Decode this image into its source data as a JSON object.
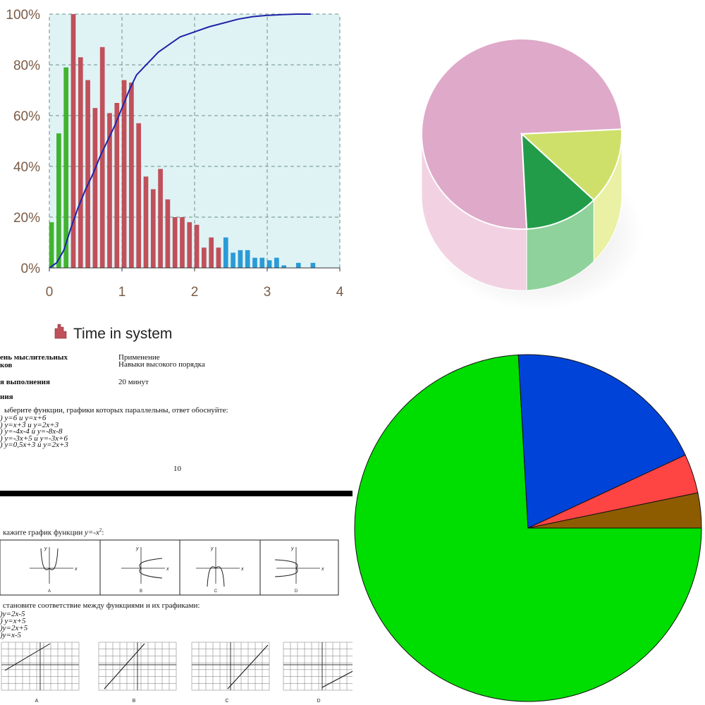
{
  "chart_data": [
    {
      "type": "bar",
      "x_tick_labels": [
        "0",
        "1",
        "2",
        "3",
        "4"
      ],
      "y_tick_labels": [
        "0%",
        "20%",
        "40%",
        "60%",
        "80%",
        "100%"
      ],
      "xlim": [
        0,
        4
      ],
      "ylim": [
        0,
        100
      ],
      "grid": true,
      "legend": {
        "label": "Time in system",
        "placement": "bottom"
      },
      "colors": {
        "plot_bg": "#dff3f5",
        "grid": "#6e8f86",
        "tick_text": "#7a5b45",
        "green": "#41b32f",
        "red": "#c0505a",
        "blue": "#2a9bd6",
        "line": "#1f24a8"
      },
      "bars": [
        {
          "x": 0.03,
          "y": 18,
          "color": "green"
        },
        {
          "x": 0.13,
          "y": 53,
          "color": "green"
        },
        {
          "x": 0.23,
          "y": 79,
          "color": "green"
        },
        {
          "x": 0.33,
          "y": 100,
          "color": "red"
        },
        {
          "x": 0.43,
          "y": 83,
          "color": "red"
        },
        {
          "x": 0.53,
          "y": 74,
          "color": "red"
        },
        {
          "x": 0.63,
          "y": 63,
          "color": "red"
        },
        {
          "x": 0.73,
          "y": 87,
          "color": "red"
        },
        {
          "x": 0.83,
          "y": 61,
          "color": "red"
        },
        {
          "x": 0.93,
          "y": 65,
          "color": "red"
        },
        {
          "x": 1.03,
          "y": 74,
          "color": "red"
        },
        {
          "x": 1.13,
          "y": 73,
          "color": "red"
        },
        {
          "x": 1.23,
          "y": 57,
          "color": "red"
        },
        {
          "x": 1.33,
          "y": 36,
          "color": "red"
        },
        {
          "x": 1.43,
          "y": 31,
          "color": "red"
        },
        {
          "x": 1.53,
          "y": 39,
          "color": "red"
        },
        {
          "x": 1.63,
          "y": 27,
          "color": "red"
        },
        {
          "x": 1.73,
          "y": 20,
          "color": "red"
        },
        {
          "x": 1.83,
          "y": 20,
          "color": "red"
        },
        {
          "x": 1.93,
          "y": 18,
          "color": "red"
        },
        {
          "x": 2.03,
          "y": 17,
          "color": "red"
        },
        {
          "x": 2.13,
          "y": 8,
          "color": "red"
        },
        {
          "x": 2.23,
          "y": 12,
          "color": "red"
        },
        {
          "x": 2.33,
          "y": 8,
          "color": "red"
        },
        {
          "x": 2.43,
          "y": 12,
          "color": "blue"
        },
        {
          "x": 2.53,
          "y": 6,
          "color": "blue"
        },
        {
          "x": 2.63,
          "y": 7,
          "color": "blue"
        },
        {
          "x": 2.73,
          "y": 7,
          "color": "blue"
        },
        {
          "x": 2.83,
          "y": 4,
          "color": "blue"
        },
        {
          "x": 2.93,
          "y": 4,
          "color": "blue"
        },
        {
          "x": 3.03,
          "y": 3,
          "color": "blue"
        },
        {
          "x": 3.13,
          "y": 4,
          "color": "blue"
        },
        {
          "x": 3.23,
          "y": 1,
          "color": "blue"
        },
        {
          "x": 3.43,
          "y": 2,
          "color": "blue"
        },
        {
          "x": 3.63,
          "y": 2,
          "color": "blue"
        }
      ],
      "cumulative": {
        "x": [
          0,
          0.1,
          0.2,
          0.3,
          0.4,
          0.5,
          0.6,
          0.7,
          0.8,
          0.9,
          1.0,
          1.1,
          1.2,
          1.3,
          1.4,
          1.5,
          1.6,
          1.7,
          1.8,
          1.9,
          2.0,
          2.2,
          2.4,
          2.6,
          2.8,
          3.0,
          3.2,
          3.4,
          3.6
        ],
        "y": [
          0,
          2,
          7,
          16,
          24,
          31,
          37,
          44,
          50,
          56,
          63,
          70,
          76,
          79,
          82,
          85,
          87,
          89,
          91,
          92,
          93,
          95,
          96.5,
          98,
          99,
          99.5,
          99.8,
          100,
          100
        ]
      }
    },
    {
      "type": "pie",
      "style": "3d",
      "values": [
        75,
        13,
        12
      ],
      "colors": [
        "#dfa9c9",
        "#cfe06a",
        "#239c4a"
      ],
      "side_colors": [
        "#f2d2e2",
        "#eaf0a4",
        "#8fd29b"
      ]
    },
    {
      "type": "pie",
      "style": "2d",
      "values": [
        75,
        19.2,
        3.7,
        3.3
      ],
      "colors": [
        "#00dd00",
        "#0043d8",
        "#ff4444",
        "#8e5c00"
      ]
    }
  ],
  "document": {
    "table_row1_left": "ень мыслительных",
    "table_row1_left2": "ков",
    "table_row1_right": "Применение",
    "table_row1_right2": "Навыки высокого порядка",
    "table_row2_left": "я выполнения",
    "table_row2_right": "20 минут",
    "heading": "ния",
    "q1": "ыберите функции, графики которых параллельны, ответ обоснуйте:",
    "q1_options": [
      ")  y=6 и y=x+6",
      ")  y=x+3  и y=2x+3",
      ")  y=-4x-4 и y=-8x-8",
      ")  y=-3x+5 и y=-3x+6",
      ")   y=0,5x+3 и y=2x+3"
    ],
    "page_number": "10",
    "q2_prefix": "кажите график функции ",
    "q2_formula": "y=-x",
    "q2_sup": "2",
    "q2_suffix": ":",
    "graph_labels": [
      "A",
      "B",
      "C",
      "D"
    ],
    "axis_x": "x",
    "axis_y": "y",
    "q3": "становите соответствие между функциями и их графиками:",
    "q3_options": [
      ")y=2x-5",
      ") y=x+5",
      ")y=2x+5",
      ")y=x-5"
    ],
    "grid_labels": [
      "A",
      "B",
      "C",
      "D"
    ]
  }
}
